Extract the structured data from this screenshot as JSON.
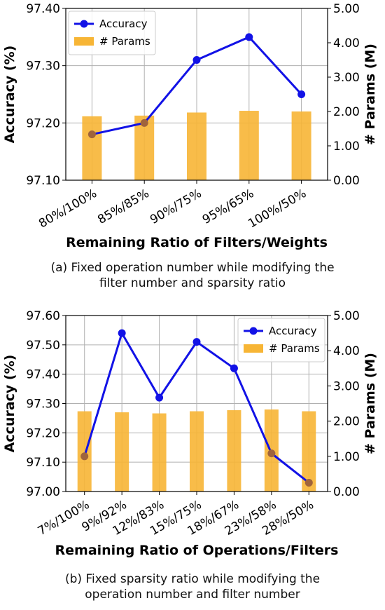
{
  "chart_data": [
    {
      "type": "bar+line",
      "categories": [
        "80%/100%",
        "85%/85%",
        "90%/75%",
        "95%/65%",
        "100%/50%"
      ],
      "series": [
        {
          "name": "Accuracy",
          "type": "line",
          "axis": "left",
          "color": "#1212e6",
          "values": [
            97.18,
            97.2,
            97.31,
            97.35,
            97.25
          ]
        },
        {
          "name": "# Params",
          "type": "bar",
          "axis": "right",
          "color": "#f7b535",
          "values": [
            1.86,
            1.88,
            1.97,
            2.02,
            2.0
          ]
        }
      ],
      "xlabel": "Remaining Ratio of Filters/Weights",
      "ylabel_left": "Accuracy (%)",
      "ylabel_right": "# Params (M)",
      "ylim_left": [
        97.1,
        97.4
      ],
      "ylim_right": [
        0,
        5
      ],
      "yticks_left": [
        "97.10",
        "97.20",
        "97.30",
        "97.40"
      ],
      "yticks_right": [
        "0.00",
        "1.00",
        "2.00",
        "3.00",
        "4.00",
        "5.00"
      ],
      "grid": true,
      "legend": "top-left",
      "caption": [
        "(a) Fixed operation number while modifying the",
        "filter number and sparsity ratio"
      ]
    },
    {
      "type": "bar+line",
      "categories": [
        "7%/100%",
        "9%/92%",
        "12%/83%",
        "15%/75%",
        "18%/67%",
        "23%/58%",
        "28%/50%"
      ],
      "series": [
        {
          "name": "Accuracy",
          "type": "line",
          "axis": "left",
          "color": "#1212e6",
          "values": [
            97.12,
            97.54,
            97.32,
            97.51,
            97.42,
            97.13,
            97.03
          ]
        },
        {
          "name": "# Params",
          "type": "bar",
          "axis": "right",
          "color": "#f7b535",
          "values": [
            2.28,
            2.25,
            2.22,
            2.28,
            2.31,
            2.33,
            2.28
          ]
        }
      ],
      "xlabel": "Remaining Ratio of Operations/Filters",
      "ylabel_left": "Accuracy (%)",
      "ylabel_right": "# Params (M)",
      "ylim_left": [
        97.0,
        97.6
      ],
      "ylim_right": [
        0,
        5
      ],
      "yticks_left": [
        "97.00",
        "97.10",
        "97.20",
        "97.30",
        "97.40",
        "97.50",
        "97.60"
      ],
      "yticks_right": [
        "0.00",
        "1.00",
        "2.00",
        "3.00",
        "4.00",
        "5.00"
      ],
      "grid": true,
      "legend": "top-right",
      "caption": [
        "(b) Fixed sparsity ratio while modifying the",
        "operation number and filter number"
      ]
    }
  ]
}
